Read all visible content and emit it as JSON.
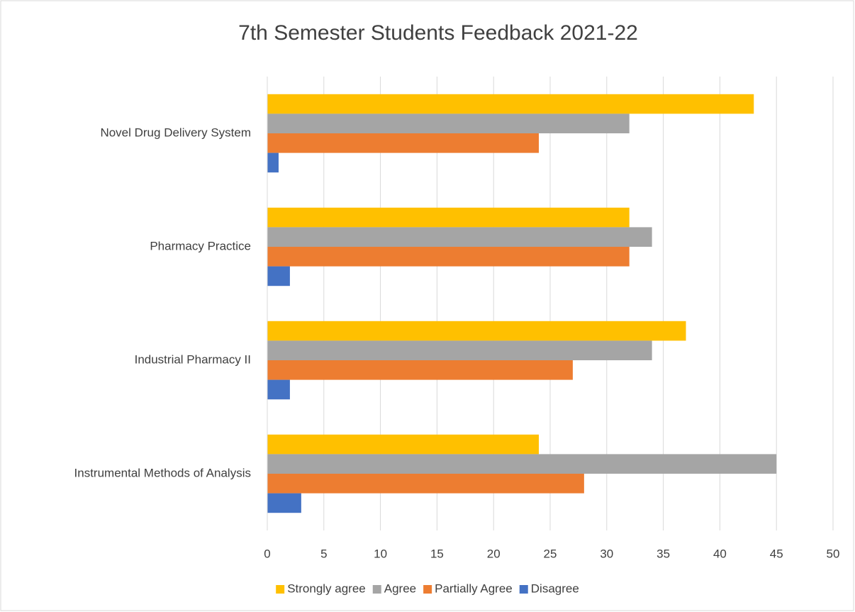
{
  "chart_data": {
    "type": "hbar",
    "title": "7th Semester Students Feedback 2021-22",
    "categories": [
      "Novel Drug Delivery System",
      "Pharmacy Practice",
      "Industrial Pharmacy II",
      "Instrumental Methods of Analysis"
    ],
    "series": [
      {
        "name": "Strongly agree",
        "color": "#ffc000",
        "values": [
          43,
          32,
          37,
          24
        ]
      },
      {
        "name": "Agree",
        "color": "#a5a5a5",
        "values": [
          32,
          34,
          34,
          45
        ]
      },
      {
        "name": "Partially Agree",
        "color": "#ed7d31",
        "values": [
          24,
          32,
          27,
          28
        ]
      },
      {
        "name": "Disagree",
        "color": "#4472c4",
        "values": [
          1,
          2,
          2,
          3
        ]
      }
    ],
    "xlim": [
      0,
      50
    ],
    "xticks": [
      0,
      5,
      10,
      15,
      20,
      25,
      30,
      35,
      40,
      45,
      50
    ],
    "grid": true,
    "legend": "bottom"
  }
}
